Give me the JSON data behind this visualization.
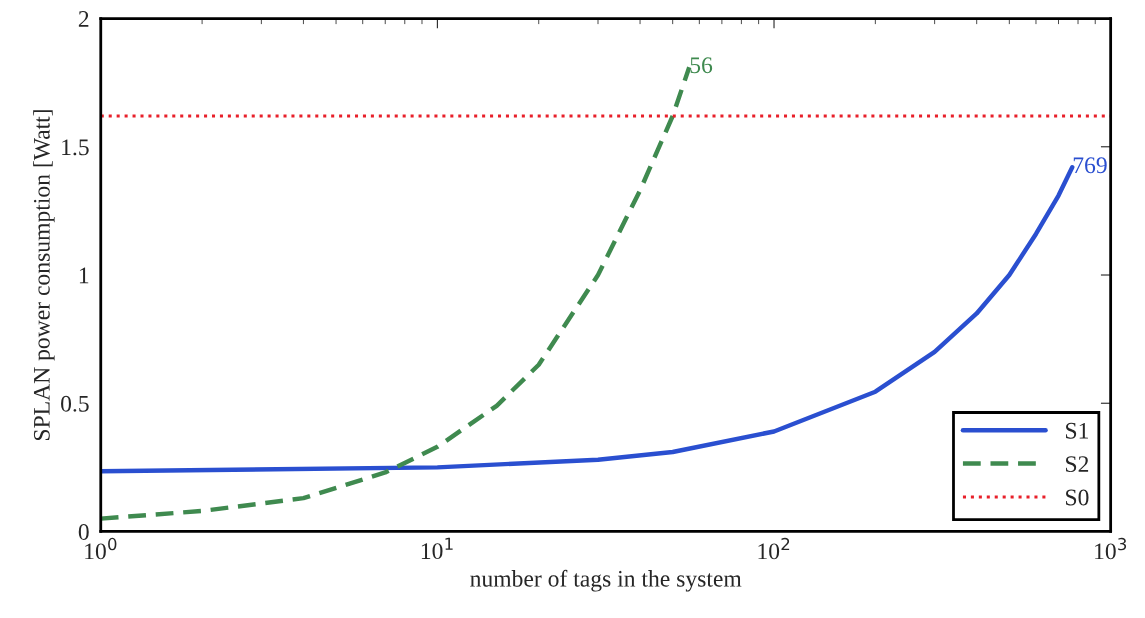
{
  "chart_data": {
    "type": "line",
    "xlabel": "number of tags in the system",
    "ylabel": "SPLAN power consumption [Watt]",
    "log": "x",
    "xlim": [
      1,
      1000
    ],
    "xticks": [
      {
        "value": 1,
        "label": "10$^{0}$"
      },
      {
        "value": 10,
        "label": "10$^{1}$"
      },
      {
        "value": 100,
        "label": "10$^{2}$"
      },
      {
        "value": 1000,
        "label": "10$^{3}$"
      }
    ],
    "ylim": [
      0,
      2
    ],
    "yticks": [
      0,
      0.5,
      1,
      1.5,
      2
    ],
    "grid": false,
    "legend": "bottom right",
    "series": [
      {
        "name": "S1",
        "color": "#2a4fd0",
        "line_style": "solid",
        "x": [
          1,
          10,
          30,
          50,
          100,
          200,
          300,
          400,
          500,
          600,
          700,
          769
        ],
        "values": [
          0.235,
          0.25,
          0.28,
          0.31,
          0.39,
          0.545,
          0.7,
          0.85,
          1.0,
          1.16,
          1.31,
          1.42
        ]
      },
      {
        "name": "S2",
        "color": "#3f8a4f",
        "line_style": "dashed",
        "x": [
          1,
          2,
          4,
          7,
          10,
          15,
          20,
          30,
          40,
          50,
          56
        ],
        "values": [
          0.05,
          0.08,
          0.13,
          0.23,
          0.33,
          0.49,
          0.65,
          1.0,
          1.33,
          1.62,
          1.81
        ]
      },
      {
        "name": "S0",
        "color": "#e8202a",
        "line_style": "dotted",
        "x": [
          1,
          1000
        ],
        "values": [
          1.62,
          1.62
        ]
      }
    ],
    "annotations": [
      {
        "text": "56",
        "x": 56,
        "y": 1.81
      },
      {
        "text": "769",
        "x": 769,
        "y": 1.42
      }
    ]
  }
}
